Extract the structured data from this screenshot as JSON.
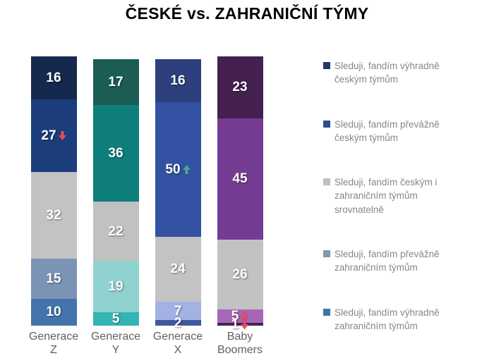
{
  "title": "ČESKÉ vs. ZAHRANIČNÍ TÝMY",
  "chart_data": {
    "type": "bar",
    "subtype": "stacked-100-percent-vertical",
    "title": "ČESKÉ vs. ZAHRANIČNÍ TÝMY",
    "stack_order": "first-series-on-top",
    "ylim": [
      0,
      100
    ],
    "grid": false,
    "categories": [
      "Generace Z",
      "Generace Y",
      "Generace X",
      "Baby Boomers"
    ],
    "category_lines": [
      [
        "Generace",
        "Z"
      ],
      [
        "Generace",
        "Y"
      ],
      [
        "Generace",
        "X"
      ],
      [
        "Baby",
        "Boomers"
      ]
    ],
    "series": [
      {
        "name": "Sleduji, fandím výhradně českým týmům",
        "values": [
          16,
          17,
          16,
          23
        ]
      },
      {
        "name": "Sleduji, fandím převážně českým týmům",
        "values": [
          27,
          36,
          50,
          45
        ]
      },
      {
        "name": "Sleduji, fandím českým i zahraničním týmům srovnatelně",
        "values": [
          32,
          22,
          24,
          26
        ]
      },
      {
        "name": "Sleduji, fandím převážně zahraničním týmům",
        "values": [
          15,
          19,
          7,
          5
        ]
      },
      {
        "name": "Sleduji, fandím výhradně zahraničním týmům",
        "values": [
          10,
          5,
          2,
          1
        ]
      }
    ],
    "bar_palettes": [
      [
        "#14294d",
        "#1c3d7c",
        "#c3c3c3",
        "#7b93b5",
        "#4474ab"
      ],
      [
        "#1b5c53",
        "#0e7e7b",
        "#c1c1c1",
        "#90d2cf",
        "#35b4b4"
      ],
      [
        "#2d3f7d",
        "#3352a3",
        "#c3c3c5",
        "#a3b2e3",
        "#40589c"
      ],
      [
        "#432050",
        "#743b92",
        "#c2c2c2",
        "#a667b5",
        "#45234f"
      ]
    ],
    "annotations": [
      {
        "category": 0,
        "series": 1,
        "direction": "down"
      },
      {
        "category": 2,
        "series": 1,
        "direction": "up"
      },
      {
        "category": 3,
        "series": 3,
        "direction": "down"
      },
      {
        "category": 3,
        "series": 4,
        "direction": "down"
      }
    ],
    "arrow_colors": {
      "down": "#e84a5f",
      "up": "#4da98b"
    },
    "value_label_color": "#ffffff",
    "axis_label_color": "#616161",
    "legend": {
      "position": "right",
      "text_color": "#878787",
      "swatch_colors": [
        "#1f3864",
        "#2e4d8f",
        "#bfbfbf",
        "#8496b0",
        "#4173a6"
      ]
    }
  }
}
